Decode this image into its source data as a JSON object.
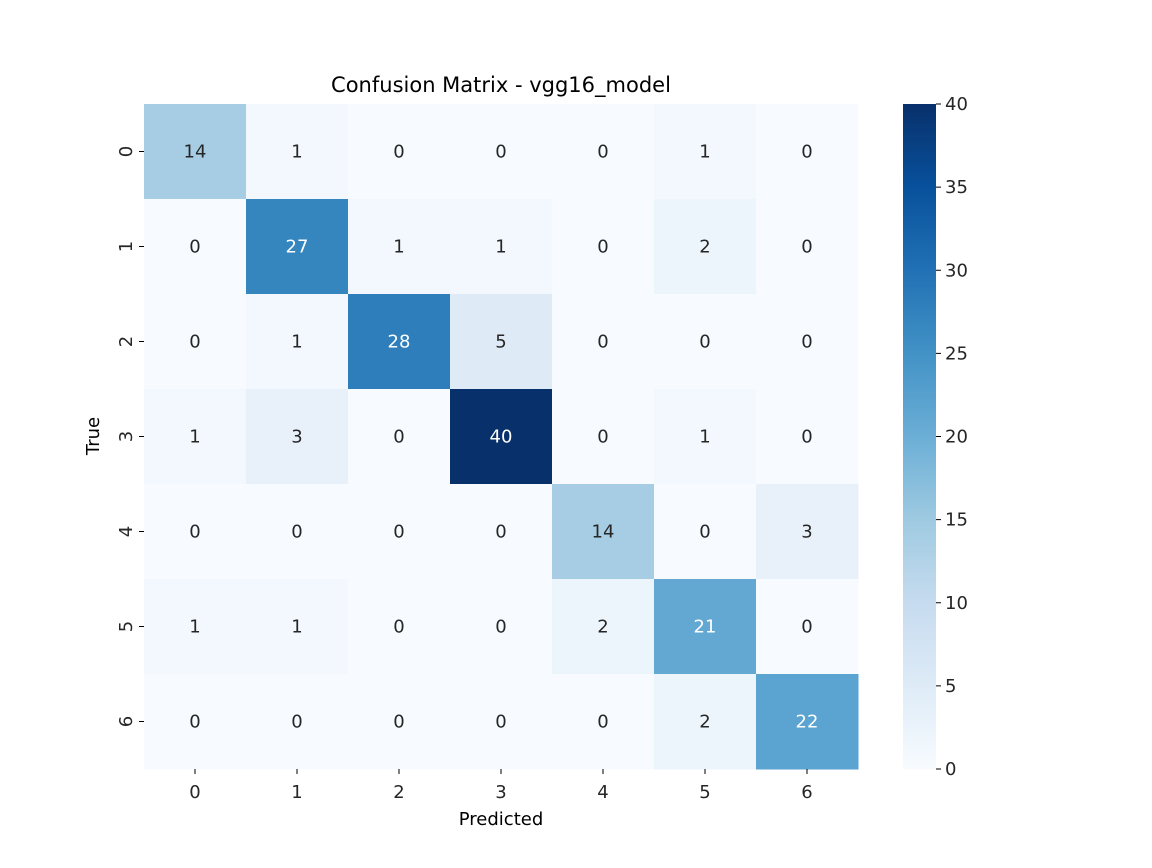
{
  "chart_data": {
    "type": "heatmap",
    "title": "Confusion Matrix - vgg16_model",
    "xlabel": "Predicted",
    "ylabel": "True",
    "x_categories": [
      "0",
      "1",
      "2",
      "3",
      "4",
      "5",
      "6"
    ],
    "y_categories": [
      "0",
      "1",
      "2",
      "3",
      "4",
      "5",
      "6"
    ],
    "values": [
      [
        14,
        1,
        0,
        0,
        0,
        1,
        0
      ],
      [
        0,
        27,
        1,
        1,
        0,
        2,
        0
      ],
      [
        0,
        1,
        28,
        5,
        0,
        0,
        0
      ],
      [
        1,
        3,
        0,
        40,
        0,
        1,
        0
      ],
      [
        0,
        0,
        0,
        0,
        14,
        0,
        3
      ],
      [
        1,
        1,
        0,
        0,
        2,
        21,
        0
      ],
      [
        0,
        0,
        0,
        0,
        0,
        2,
        22
      ]
    ],
    "colormap": "Blues",
    "vmin": 0,
    "vmax": 40,
    "colorbar_ticks": [
      "0",
      "5",
      "10",
      "15",
      "20",
      "25",
      "30",
      "35",
      "40"
    ],
    "annotated": true,
    "grid": false
  }
}
